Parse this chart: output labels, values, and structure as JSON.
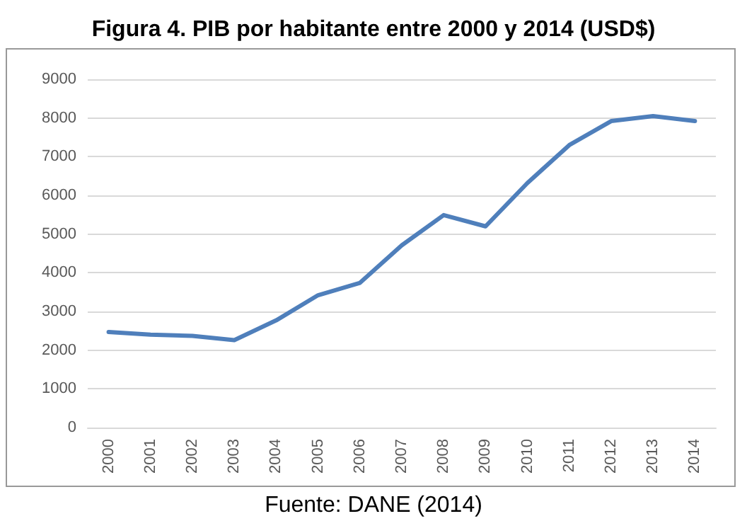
{
  "chart_data": {
    "type": "line",
    "title": "Figura 4. PIB por habitante entre 2000 y 2014 (USD$)",
    "annotations": [
      "Fuente: DANE (2014)"
    ],
    "categories": [
      "2000",
      "2001",
      "2002",
      "2003",
      "2004",
      "2005",
      "2006",
      "2007",
      "2008",
      "2009",
      "2010",
      "2011",
      "2012",
      "2013",
      "2014"
    ],
    "series": [
      {
        "color": "#4f7fbb",
        "values": [
          2470,
          2400,
          2370,
          2260,
          2770,
          3420,
          3740,
          4710,
          5490,
          5200,
          6320,
          7300,
          7920,
          8050,
          7920
        ]
      }
    ],
    "ylim": [
      0,
      9000
    ],
    "yticks": [
      0,
      1000,
      2000,
      3000,
      4000,
      5000,
      6000,
      7000,
      8000,
      9000
    ],
    "grid": "y",
    "marker": "none",
    "line_style": "solid"
  }
}
